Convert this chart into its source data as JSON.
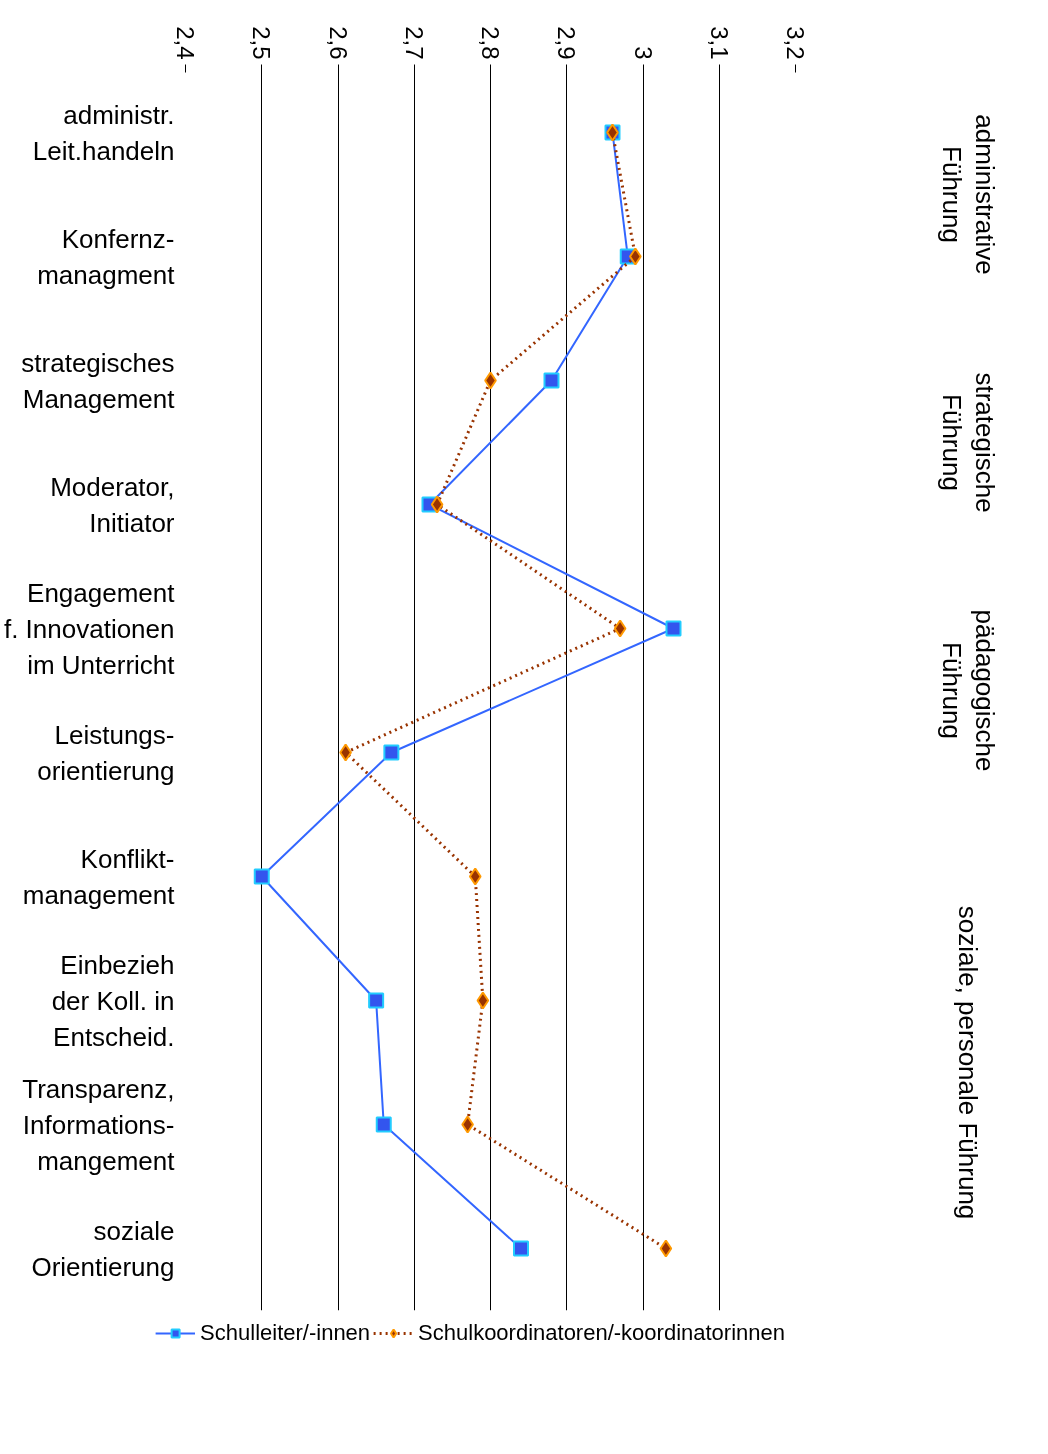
{
  "chart_data": {
    "type": "line",
    "orientation": "horizontal",
    "categories": [
      "administr.\nLeit.handeln",
      "Konfernz-\nmanagment",
      "strategisches\nManagement",
      "Moderator,\nInitiator",
      "Engagement\nf. Innovationen\nim Unterricht",
      "Leistungs-\norientierung",
      "Konflikt-\nmanagement",
      "Einbezieh\nder Koll. in\nEntscheid.",
      "Transparenz,\nInformations-\nmangement",
      "soziale\nOrientierung"
    ],
    "series": [
      {
        "name": "Schulleiter/-innen",
        "color": "#3366ff",
        "marker": "square",
        "line_style": "solid",
        "values": [
          2.96,
          2.98,
          2.88,
          2.72,
          3.04,
          2.67,
          2.5,
          2.65,
          2.66,
          2.84
        ]
      },
      {
        "name": "Schulkoordinatoren/-koordinatorinnen",
        "color": "#993300",
        "marker": "diamond",
        "line_style": "dotted",
        "values": [
          2.96,
          2.99,
          2.8,
          2.73,
          2.97,
          2.61,
          2.78,
          2.79,
          2.77,
          3.03
        ]
      }
    ],
    "xlim": [
      2.4,
      3.2
    ],
    "xticks": [
      {
        "value": 2.4,
        "label": "2,4"
      },
      {
        "value": 2.5,
        "label": "2,5"
      },
      {
        "value": 2.6,
        "label": "2,6"
      },
      {
        "value": 2.7,
        "label": "2,7"
      },
      {
        "value": 2.8,
        "label": "2,8"
      },
      {
        "value": 2.9,
        "label": "2,9"
      },
      {
        "value": 3,
        "label": "3"
      },
      {
        "value": 3.1,
        "label": "3,1"
      },
      {
        "value": 3.2,
        "label": "3,2"
      }
    ],
    "grid": "x",
    "legend": "bottom",
    "annotations": [
      "administrative\nFührung",
      "strategische\nFührung",
      "pädagogische\nFührung",
      "soziale, personale Führung"
    ]
  }
}
